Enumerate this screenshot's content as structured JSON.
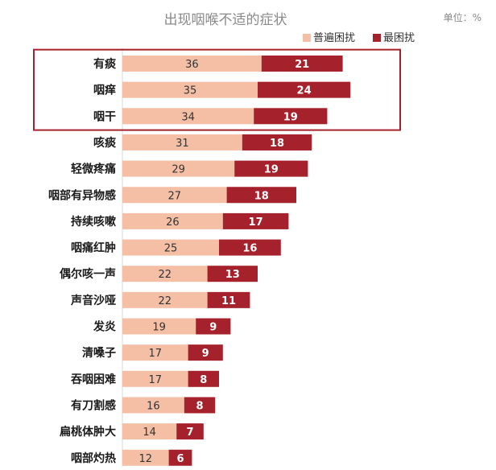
{
  "chart_data": {
    "type": "bar",
    "orientation": "horizontal",
    "stacked": true,
    "title": "出现咽喉不适的症状",
    "unit_label": "单位：%",
    "categories": [
      "有痰",
      "咽痒",
      "咽干",
      "咳痰",
      "轻微疼痛",
      "咽部有异物感",
      "持续咳嗽",
      "咽痛红肿",
      "偶尔咳一声",
      "声音沙哑",
      "发炎",
      "清嗓子",
      "吞咽困难",
      "有刀割感",
      "扁桃体肿大",
      "咽部灼热"
    ],
    "series": [
      {
        "name": "普遍困扰",
        "color": "#f5bfa6",
        "values": [
          36,
          35,
          34,
          31,
          29,
          27,
          26,
          25,
          22,
          22,
          19,
          17,
          17,
          16,
          14,
          12
        ]
      },
      {
        "name": "最困扰",
        "color": "#a5212b",
        "values": [
          21,
          24,
          19,
          18,
          19,
          18,
          17,
          16,
          13,
          11,
          9,
          9,
          8,
          8,
          7,
          6
        ]
      }
    ],
    "legend_position": "top-right",
    "highlight": {
      "categories": [
        "有痰",
        "咽痒",
        "咽干"
      ],
      "color": "#a5212b"
    },
    "grid": false
  }
}
